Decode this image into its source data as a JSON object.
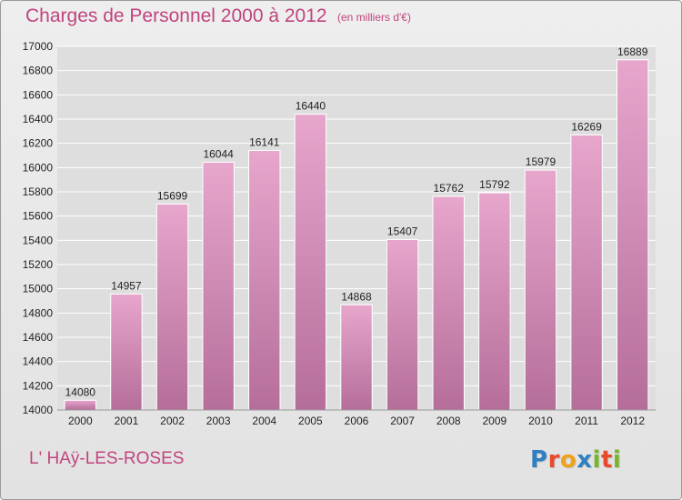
{
  "title": "Charges de Personnel 2000 à 2012",
  "subtitle": "(en milliers d'€)",
  "place": "L' HAÿ-LES-ROSES",
  "brand": {
    "letters": [
      "P",
      "r",
      "o",
      "x",
      "i",
      "t",
      "i"
    ],
    "colors": [
      "#2f7fc1",
      "#e8492b",
      "#f0a21b",
      "#2f7fc1",
      "#77b52a",
      "#e8492b",
      "#77b52a"
    ]
  },
  "colors": {
    "accent": "#c1447e",
    "bar_top": "#e7a6cc",
    "bar_bottom": "#b56e9a",
    "grid": "#ffffff",
    "axis_text": "#222222"
  },
  "chart_data": {
    "type": "bar",
    "categories": [
      "2000",
      "2001",
      "2002",
      "2003",
      "2004",
      "2005",
      "2006",
      "2007",
      "2008",
      "2009",
      "2010",
      "2011",
      "2012"
    ],
    "values": [
      14080,
      14957,
      15699,
      16044,
      16141,
      16440,
      14868,
      15407,
      15762,
      15792,
      15979,
      16269,
      16889
    ],
    "data_labels": [
      "14080",
      "14957",
      "15699",
      "16044",
      "16141",
      "16440",
      "14868",
      "15407",
      "15762",
      "15792",
      "15979",
      "16269",
      "16889"
    ],
    "yticks": [
      14000,
      14200,
      14400,
      14600,
      14800,
      15000,
      15200,
      15400,
      15600,
      15800,
      16000,
      16200,
      16400,
      16600,
      16800,
      17000
    ],
    "ylim": [
      14000,
      17000
    ],
    "grid": true,
    "legend": "none"
  }
}
